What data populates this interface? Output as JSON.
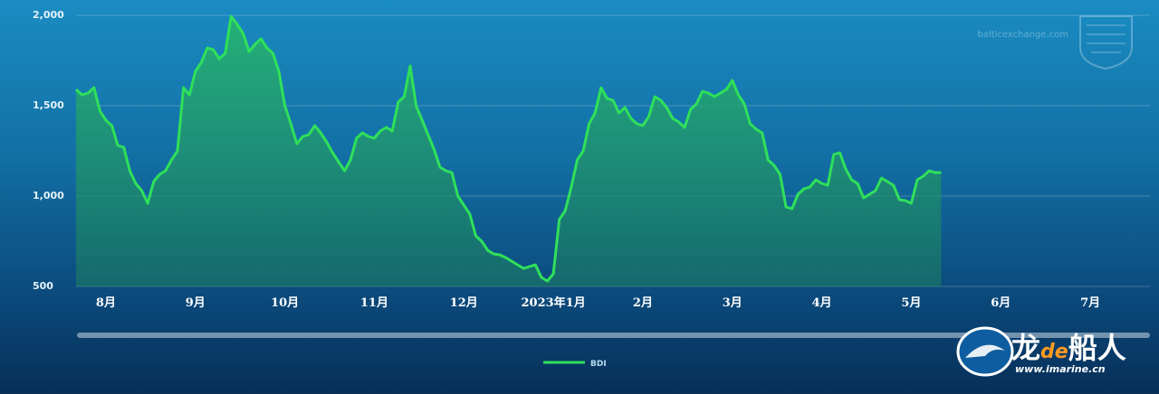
{
  "chart_data": {
    "type": "area",
    "series": [
      {
        "name": "BDI",
        "color": "#2fe05a",
        "points": [
          [
            0,
            1590
          ],
          [
            1,
            1560
          ],
          [
            2,
            1570
          ],
          [
            3,
            1600
          ],
          [
            4,
            1470
          ],
          [
            5,
            1420
          ],
          [
            6,
            1390
          ],
          [
            7,
            1280
          ],
          [
            8,
            1270
          ],
          [
            9,
            1140
          ],
          [
            10,
            1070
          ],
          [
            11,
            1030
          ],
          [
            12,
            960
          ],
          [
            13,
            1080
          ],
          [
            14,
            1120
          ],
          [
            15,
            1140
          ],
          [
            16,
            1200
          ],
          [
            17,
            1250
          ],
          [
            18,
            1600
          ],
          [
            19,
            1560
          ],
          [
            20,
            1690
          ],
          [
            21,
            1740
          ],
          [
            22,
            1820
          ],
          [
            23,
            1810
          ],
          [
            24,
            1760
          ],
          [
            25,
            1790
          ],
          [
            26,
            1995
          ],
          [
            27,
            1950
          ],
          [
            28,
            1900
          ],
          [
            29,
            1800
          ],
          [
            30,
            1840
          ],
          [
            31,
            1870
          ],
          [
            32,
            1820
          ],
          [
            33,
            1790
          ],
          [
            34,
            1690
          ],
          [
            35,
            1500
          ],
          [
            36,
            1400
          ],
          [
            37,
            1290
          ],
          [
            38,
            1330
          ],
          [
            39,
            1340
          ],
          [
            40,
            1390
          ],
          [
            41,
            1350
          ],
          [
            42,
            1300
          ],
          [
            43,
            1240
          ],
          [
            44,
            1190
          ],
          [
            45,
            1140
          ],
          [
            46,
            1200
          ],
          [
            47,
            1320
          ],
          [
            48,
            1350
          ],
          [
            49,
            1330
          ],
          [
            50,
            1320
          ],
          [
            51,
            1360
          ],
          [
            52,
            1380
          ],
          [
            53,
            1360
          ],
          [
            54,
            1520
          ],
          [
            55,
            1550
          ],
          [
            56,
            1720
          ],
          [
            57,
            1500
          ],
          [
            58,
            1420
          ],
          [
            59,
            1340
          ],
          [
            60,
            1260
          ],
          [
            61,
            1160
          ],
          [
            62,
            1140
          ],
          [
            63,
            1130
          ],
          [
            64,
            1000
          ],
          [
            65,
            950
          ],
          [
            66,
            900
          ],
          [
            67,
            780
          ],
          [
            68,
            750
          ],
          [
            69,
            700
          ],
          [
            70,
            680
          ],
          [
            71,
            675
          ],
          [
            72,
            660
          ],
          [
            73,
            640
          ],
          [
            74,
            620
          ],
          [
            75,
            600
          ],
          [
            76,
            610
          ],
          [
            77,
            620
          ],
          [
            78,
            550
          ],
          [
            79,
            530
          ],
          [
            80,
            570
          ],
          [
            81,
            870
          ],
          [
            82,
            920
          ],
          [
            83,
            1050
          ],
          [
            84,
            1200
          ],
          [
            85,
            1250
          ],
          [
            86,
            1400
          ],
          [
            87,
            1460
          ],
          [
            88,
            1600
          ],
          [
            89,
            1540
          ],
          [
            90,
            1530
          ],
          [
            91,
            1460
          ],
          [
            92,
            1490
          ],
          [
            93,
            1430
          ],
          [
            94,
            1400
          ],
          [
            95,
            1390
          ],
          [
            96,
            1440
          ],
          [
            97,
            1550
          ],
          [
            98,
            1530
          ],
          [
            99,
            1490
          ],
          [
            100,
            1430
          ],
          [
            101,
            1410
          ],
          [
            102,
            1380
          ],
          [
            103,
            1480
          ],
          [
            104,
            1510
          ],
          [
            105,
            1580
          ],
          [
            106,
            1570
          ],
          [
            107,
            1550
          ],
          [
            108,
            1570
          ],
          [
            109,
            1590
          ],
          [
            110,
            1640
          ],
          [
            111,
            1560
          ],
          [
            112,
            1510
          ],
          [
            113,
            1400
          ],
          [
            114,
            1370
          ],
          [
            115,
            1350
          ],
          [
            116,
            1200
          ],
          [
            117,
            1170
          ],
          [
            118,
            1120
          ],
          [
            119,
            940
          ],
          [
            120,
            930
          ],
          [
            121,
            1010
          ],
          [
            122,
            1040
          ],
          [
            123,
            1050
          ],
          [
            124,
            1090
          ],
          [
            125,
            1070
          ],
          [
            126,
            1060
          ],
          [
            127,
            1230
          ],
          [
            128,
            1240
          ],
          [
            129,
            1150
          ],
          [
            130,
            1090
          ],
          [
            131,
            1070
          ],
          [
            132,
            990
          ],
          [
            133,
            1010
          ],
          [
            134,
            1030
          ],
          [
            135,
            1100
          ],
          [
            136,
            1080
          ],
          [
            137,
            1060
          ],
          [
            138,
            980
          ],
          [
            139,
            975
          ],
          [
            140,
            960
          ],
          [
            141,
            1090
          ],
          [
            142,
            1110
          ],
          [
            143,
            1140
          ],
          [
            144,
            1130
          ],
          [
            145,
            1130
          ]
        ]
      }
    ],
    "x_ticks": [
      {
        "label": "8月",
        "x": 5
      },
      {
        "label": "9月",
        "x": 20
      },
      {
        "label": "10月",
        "x": 35
      },
      {
        "label": "11月",
        "x": 50
      },
      {
        "label": "12月",
        "x": 65
      },
      {
        "label": "2023年1月",
        "x": 80
      },
      {
        "label": "2月",
        "x": 95
      },
      {
        "label": "3月",
        "x": 110
      },
      {
        "label": "4月",
        "x": 125
      },
      {
        "label": "5月",
        "x": 140
      },
      {
        "label": "6月",
        "x": 155
      },
      {
        "label": "7月",
        "x": 170
      }
    ],
    "xlim": [
      0,
      180
    ],
    "ylim": [
      500,
      2000
    ],
    "y_ticks": [
      {
        "value": 2000,
        "label": "2,000"
      },
      {
        "value": 1500,
        "label": "1,500"
      },
      {
        "value": 1000,
        "label": "1,000"
      },
      {
        "value": 500,
        "label": "500"
      }
    ],
    "legend": {
      "label": "BDI",
      "position": "bottom-center"
    },
    "grid": true
  },
  "watermark": {
    "text": "balticexchange.com"
  },
  "brand": {
    "main_prefix": "龙",
    "main_accent": "de",
    "main_suffix": "船人",
    "url": "www.imarine.cn",
    "accent_color": "#ff9a1f"
  }
}
